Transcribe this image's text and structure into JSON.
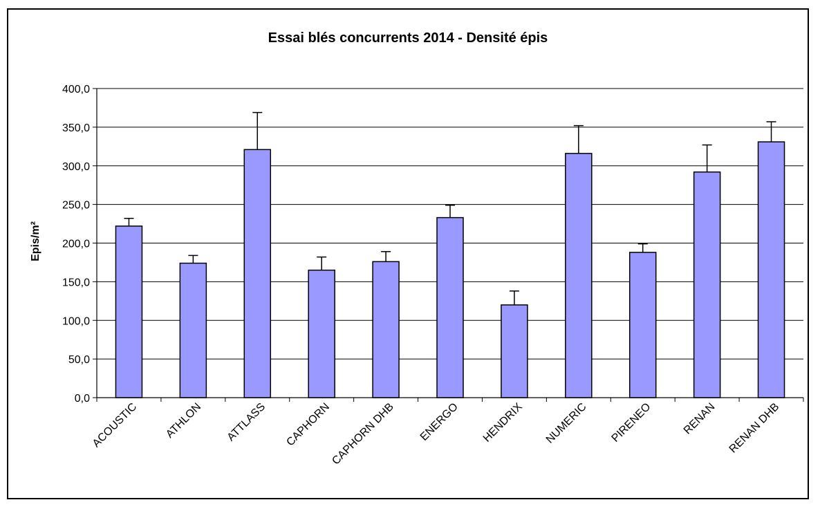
{
  "chart_data": {
    "type": "bar",
    "title": "Essai blés concurrents 2014 - Densité épis",
    "ylabel": "Epis/m²",
    "xlabel": "",
    "ylim": [
      0,
      400
    ],
    "ytick_step": 50,
    "ytick_labels": [
      "0,0",
      "50,0",
      "100,0",
      "150,0",
      "200,0",
      "250,0",
      "300,0",
      "350,0",
      "400,0"
    ],
    "grid": true,
    "legend": "none",
    "categories": [
      "ACOUSTIC",
      "ATHLON",
      "ATTLASS",
      "CAPHORN",
      "CAPHORN DHB",
      "ENERGO",
      "HENDRIX",
      "NUMERIC",
      "PIRENEO",
      "RENAN",
      "RENAN DHB"
    ],
    "values": [
      222,
      174,
      321,
      165,
      176,
      233,
      120,
      316,
      188,
      292,
      331
    ],
    "error_upper": [
      10,
      10,
      48,
      17,
      13,
      16,
      18,
      36,
      11,
      35,
      26
    ],
    "bar_color": "#9999ff"
  }
}
